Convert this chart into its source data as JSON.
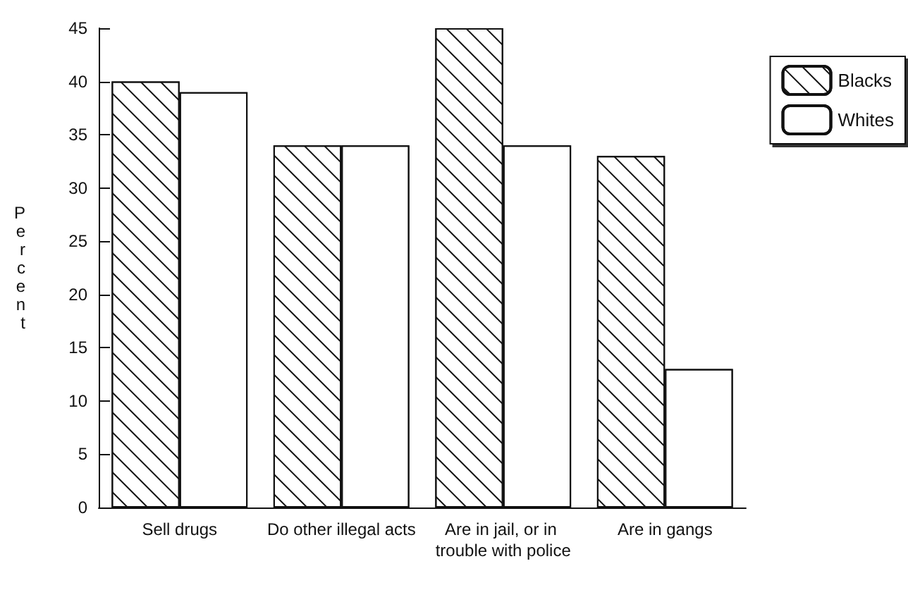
{
  "chart_data": {
    "type": "bar",
    "ylabel": "Percent",
    "categories": [
      "Sell drugs",
      "Do other illegal acts",
      "Are in jail, or in trouble with police",
      "Are in gangs"
    ],
    "series": [
      {
        "name": "Blacks",
        "color": "#ffffff",
        "values": [
          40,
          34,
          45,
          33
        ]
      },
      {
        "name": "Whites",
        "color": "#ffffff",
        "values": [
          39,
          34,
          34,
          13
        ]
      }
    ],
    "ylim": [
      0,
      45
    ],
    "yticks": [
      0,
      5,
      10,
      15,
      20,
      25,
      30,
      35,
      40,
      45
    ],
    "grid": false,
    "legend": "top right"
  }
}
